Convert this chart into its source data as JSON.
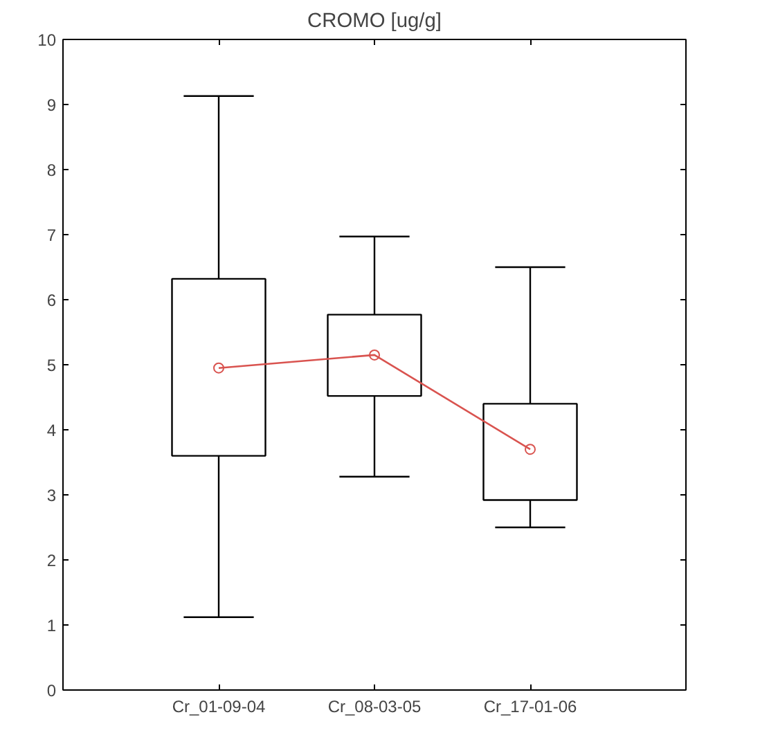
{
  "chart_data": {
    "type": "box",
    "title": "CROMO [ug/g]",
    "categories": [
      "Cr_01-09-04",
      "Cr_08-03-05",
      "Cr_17-01-06"
    ],
    "boxes": [
      {
        "low": 1.12,
        "q1": 3.6,
        "median": 4.95,
        "q3": 6.32,
        "high": 9.13
      },
      {
        "low": 3.28,
        "q1": 4.52,
        "median": 5.15,
        "q3": 5.77,
        "high": 6.97
      },
      {
        "low": 2.5,
        "q1": 2.92,
        "median": 3.7,
        "q3": 4.4,
        "high": 6.5
      }
    ],
    "series": [
      {
        "type": "line",
        "color": "#d9534f",
        "values": [
          4.95,
          5.15,
          3.7
        ]
      }
    ],
    "ylim": [
      0,
      10
    ],
    "yticks": [
      0,
      1,
      2,
      3,
      4,
      5,
      6,
      7,
      8,
      9,
      10
    ],
    "grid": false
  }
}
